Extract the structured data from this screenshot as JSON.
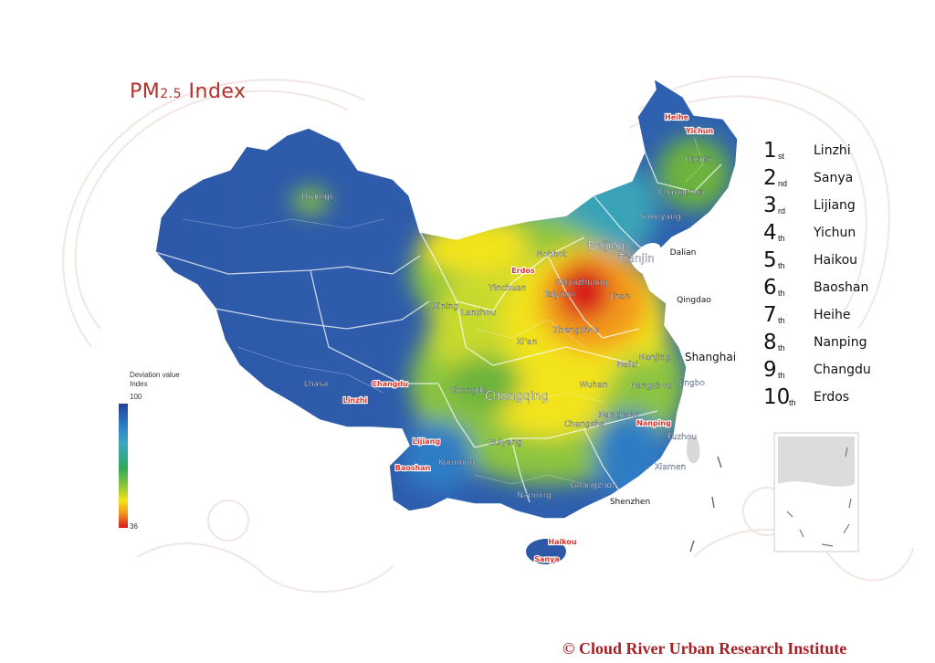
{
  "title": {
    "main": "PM",
    "sub": "2.5",
    "rest": " Index"
  },
  "ranking": [
    {
      "num": "1",
      "suffix": "st",
      "name": "Linzhi"
    },
    {
      "num": "2",
      "suffix": "nd",
      "name": "Sanya"
    },
    {
      "num": "3",
      "suffix": "rd",
      "name": "Lijiang"
    },
    {
      "num": "4",
      "suffix": "th",
      "name": "Yichun"
    },
    {
      "num": "5",
      "suffix": "th",
      "name": "Haikou"
    },
    {
      "num": "6",
      "suffix": "th",
      "name": "Baoshan"
    },
    {
      "num": "7",
      "suffix": "th",
      "name": "Heihe"
    },
    {
      "num": "8",
      "suffix": "th",
      "name": "Nanping"
    },
    {
      "num": "9",
      "suffix": "th",
      "name": "Changdu"
    },
    {
      "num": "10",
      "suffix": "th",
      "name": "Erdos"
    }
  ],
  "legend": {
    "title_line1": "Deviation value",
    "title_line2": "Index",
    "max": "100",
    "min": "36",
    "colors": [
      "#23409a",
      "#2f7dc4",
      "#39a9c1",
      "#2ea85a",
      "#8cc43f",
      "#f2e31a",
      "#f29a1f",
      "#d7191c"
    ]
  },
  "cities": [
    {
      "name": "Heihe",
      "highlight": true
    },
    {
      "name": "Yichun",
      "highlight": true
    },
    {
      "name": "Harbin",
      "highlight": false
    },
    {
      "name": "Changchun",
      "highlight": false
    },
    {
      "name": "Shenyang",
      "highlight": false
    },
    {
      "name": "Urumqi",
      "highlight": false
    },
    {
      "name": "Hohhot",
      "highlight": false
    },
    {
      "name": "Beijing",
      "highlight": false
    },
    {
      "name": "Tianjin",
      "highlight": false
    },
    {
      "name": "Dalian",
      "highlight": false
    },
    {
      "name": "Erdos",
      "highlight": true
    },
    {
      "name": "Shijiazhuang",
      "highlight": false
    },
    {
      "name": "Taiyuan",
      "highlight": false
    },
    {
      "name": "Jinan",
      "highlight": false
    },
    {
      "name": "Qingdao",
      "highlight": false
    },
    {
      "name": "Yinchuan",
      "highlight": false
    },
    {
      "name": "Xining",
      "highlight": false
    },
    {
      "name": "Lanzhou",
      "highlight": false
    },
    {
      "name": "Zhengzhou",
      "highlight": false
    },
    {
      "name": "Xi'an",
      "highlight": false
    },
    {
      "name": "Nanjing",
      "highlight": false
    },
    {
      "name": "Shanghai",
      "highlight": false
    },
    {
      "name": "Hefei",
      "highlight": false
    },
    {
      "name": "Lhasa",
      "highlight": false
    },
    {
      "name": "Changdu",
      "highlight": true
    },
    {
      "name": "Linzhi",
      "highlight": true
    },
    {
      "name": "Chengdu",
      "highlight": false
    },
    {
      "name": "Chongqing",
      "highlight": false
    },
    {
      "name": "Wuhan",
      "highlight": false
    },
    {
      "name": "Hangzhou",
      "highlight": false
    },
    {
      "name": "Ningbo",
      "highlight": false
    },
    {
      "name": "Nanchang",
      "highlight": false
    },
    {
      "name": "Changsha",
      "highlight": false
    },
    {
      "name": "Nanping",
      "highlight": true
    },
    {
      "name": "Lijiang",
      "highlight": true
    },
    {
      "name": "Guiyang",
      "highlight": false
    },
    {
      "name": "Fuzhou",
      "highlight": false
    },
    {
      "name": "Kunming",
      "highlight": false
    },
    {
      "name": "Baoshan",
      "highlight": true
    },
    {
      "name": "Xiamen",
      "highlight": false
    },
    {
      "name": "Guangzhou",
      "highlight": false
    },
    {
      "name": "Nanning",
      "highlight": false
    },
    {
      "name": "Shenzhen",
      "highlight": false
    },
    {
      "name": "Haikou",
      "highlight": true
    },
    {
      "name": "Sanya",
      "highlight": true
    }
  ],
  "colors": {
    "title": "#b3312d",
    "highlight_city": "#e0312b",
    "copyright": "#a52024"
  },
  "copyright": "© Cloud River Urban Research Institute"
}
